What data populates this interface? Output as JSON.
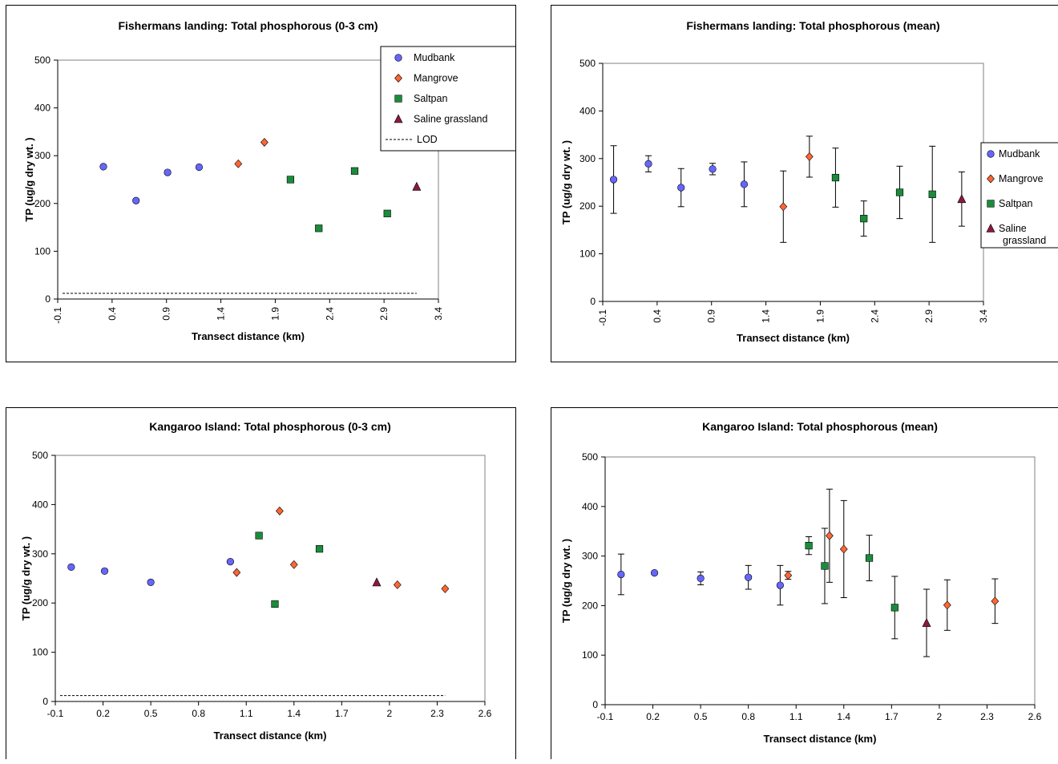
{
  "chart_data": [
    {
      "type": "scatter",
      "title": "Fishermans landing: Total phosphorous (0-3 cm)",
      "xlabel": "Transect distance (km)",
      "ylabel": "TP (ug/g dry wt. )",
      "xlim": [
        -0.1,
        3.4
      ],
      "ylim": [
        0,
        500
      ],
      "xticks": [
        "-0.1",
        "0.4",
        "0.9",
        "1.4",
        "1.9",
        "2.4",
        "2.9",
        "3.4"
      ],
      "yticks": [
        "0",
        "100",
        "200",
        "300",
        "400",
        "500"
      ],
      "xtick_rotation": "vertical",
      "legend_position": "top-right",
      "grid": false,
      "series": [
        {
          "name": "Mudbank",
          "marker": "circle",
          "color": "#6666ff",
          "points": [
            [
              0.32,
              277
            ],
            [
              0.62,
              206
            ],
            [
              0.91,
              265
            ],
            [
              1.2,
              276
            ]
          ]
        },
        {
          "name": "Mangrove",
          "marker": "diamond",
          "color": "#ff6633",
          "points": [
            [
              1.56,
              283
            ],
            [
              1.8,
              328
            ]
          ]
        },
        {
          "name": "Saltpan",
          "marker": "square",
          "color": "#1a8c3c",
          "points": [
            [
              2.04,
              250
            ],
            [
              2.3,
              148
            ],
            [
              2.63,
              268
            ],
            [
              2.93,
              179
            ]
          ]
        },
        {
          "name": "Saline grassland",
          "marker": "triangle",
          "color": "#8b1a3c",
          "points": [
            [
              3.2,
              235
            ]
          ]
        }
      ],
      "lod": {
        "name": "LOD",
        "value": 12,
        "x_range": [
          -0.1,
          3.2
        ]
      }
    },
    {
      "type": "scatter",
      "title": "Fishermans landing: Total phosphorous (mean)",
      "xlabel": "Transect distance (km)",
      "ylabel": "TP (ug/g dry wt. )",
      "xlim": [
        -0.1,
        3.4
      ],
      "ylim": [
        0,
        500
      ],
      "xticks": [
        "-0.1",
        "0.4",
        "0.9",
        "1.4",
        "1.9",
        "2.4",
        "2.9",
        "3.4"
      ],
      "yticks": [
        "0",
        "100",
        "200",
        "300",
        "400",
        "500"
      ],
      "xtick_rotation": "vertical",
      "legend_position": "right",
      "grid": false,
      "series": [
        {
          "name": "Mudbank",
          "marker": "circle",
          "color": "#6666ff",
          "points": [
            [
              0.0,
              256,
              71
            ],
            [
              0.32,
              289,
              17
            ],
            [
              0.62,
              239,
              40
            ],
            [
              0.91,
              278,
              12
            ],
            [
              1.2,
              246,
              47
            ]
          ]
        },
        {
          "name": "Mangrove",
          "marker": "diamond",
          "color": "#ff6633",
          "points": [
            [
              1.56,
              199,
              75
            ],
            [
              1.8,
              304,
              43
            ]
          ]
        },
        {
          "name": "Saltpan",
          "marker": "square",
          "color": "#1a8c3c",
          "points": [
            [
              2.04,
              260,
              62
            ],
            [
              2.3,
              174,
              37
            ],
            [
              2.63,
              229,
              55
            ],
            [
              2.93,
              225,
              101
            ]
          ]
        },
        {
          "name": "Saline grassland",
          "marker": "triangle",
          "color": "#8b1a3c",
          "points": [
            [
              3.2,
              215,
              57
            ]
          ]
        }
      ]
    },
    {
      "type": "scatter",
      "title": "Kangaroo Island: Total phosphorous (0-3 cm)",
      "xlabel": "Transect distance (km)",
      "ylabel": "TP (ug/g dry wt. )",
      "xlim": [
        -0.1,
        2.6
      ],
      "ylim": [
        0,
        500
      ],
      "xticks": [
        "-0.1",
        "0.2",
        "0.5",
        "0.8",
        "1.1",
        "1.4",
        "1.7",
        "2",
        "2.3",
        "2.6"
      ],
      "yticks": [
        "0",
        "100",
        "200",
        "300",
        "400",
        "500"
      ],
      "xtick_rotation": "horizontal",
      "grid": false,
      "series": [
        {
          "name": "Mudbank",
          "marker": "circle",
          "color": "#6666ff",
          "points": [
            [
              0.0,
              273
            ],
            [
              0.21,
              265
            ],
            [
              0.5,
              242
            ],
            [
              1.0,
              284
            ]
          ]
        },
        {
          "name": "Mangrove",
          "marker": "diamond",
          "color": "#ff6633",
          "points": [
            [
              1.04,
              262
            ],
            [
              1.31,
              387
            ],
            [
              1.4,
              278
            ],
            [
              2.05,
              237
            ],
            [
              2.35,
              229
            ]
          ]
        },
        {
          "name": "Saltpan",
          "marker": "square",
          "color": "#1a8c3c",
          "points": [
            [
              1.18,
              337
            ],
            [
              1.28,
              198
            ],
            [
              1.56,
              310
            ]
          ]
        },
        {
          "name": "Saline grassland",
          "marker": "triangle",
          "color": "#8b1a3c",
          "points": [
            [
              1.92,
              242
            ]
          ]
        }
      ],
      "lod": {
        "name": "LOD",
        "value": 12,
        "x_range": [
          -0.1,
          2.35
        ]
      }
    },
    {
      "type": "scatter",
      "title": "Kangaroo Island: Total phosphorous (mean)",
      "xlabel": "Transect distance (km)",
      "ylabel": "TP (ug/g dry wt. )",
      "xlim": [
        -0.1,
        2.6
      ],
      "ylim": [
        0,
        500
      ],
      "xticks": [
        "-0.1",
        "0.2",
        "0.5",
        "0.8",
        "1.1",
        "1.4",
        "1.7",
        "2",
        "2.3",
        "2.6"
      ],
      "yticks": [
        "0",
        "100",
        "200",
        "300",
        "400",
        "500"
      ],
      "xtick_rotation": "horizontal",
      "grid": false,
      "series": [
        {
          "name": "Mudbank",
          "marker": "circle",
          "color": "#6666ff",
          "points": [
            [
              0.0,
              263,
              41
            ],
            [
              0.21,
              266,
              0
            ],
            [
              0.5,
              255,
              13
            ],
            [
              0.8,
              257,
              24
            ],
            [
              1.0,
              241,
              40
            ]
          ]
        },
        {
          "name": "Mangrove",
          "marker": "diamond",
          "color": "#ff6633",
          "points": [
            [
              1.05,
              261,
              8
            ],
            [
              1.31,
              341,
              94
            ],
            [
              1.4,
              314,
              98
            ],
            [
              2.05,
              201,
              51
            ],
            [
              2.35,
              209,
              45
            ]
          ]
        },
        {
          "name": "Saltpan",
          "marker": "square",
          "color": "#1a8c3c",
          "points": [
            [
              1.18,
              321,
              18
            ],
            [
              1.28,
              280,
              76
            ],
            [
              1.56,
              296,
              46
            ],
            [
              1.72,
              196,
              63
            ]
          ]
        },
        {
          "name": "Saline grassland",
          "marker": "triangle",
          "color": "#8b1a3c",
          "points": [
            [
              1.92,
              165,
              68
            ]
          ]
        }
      ]
    }
  ]
}
